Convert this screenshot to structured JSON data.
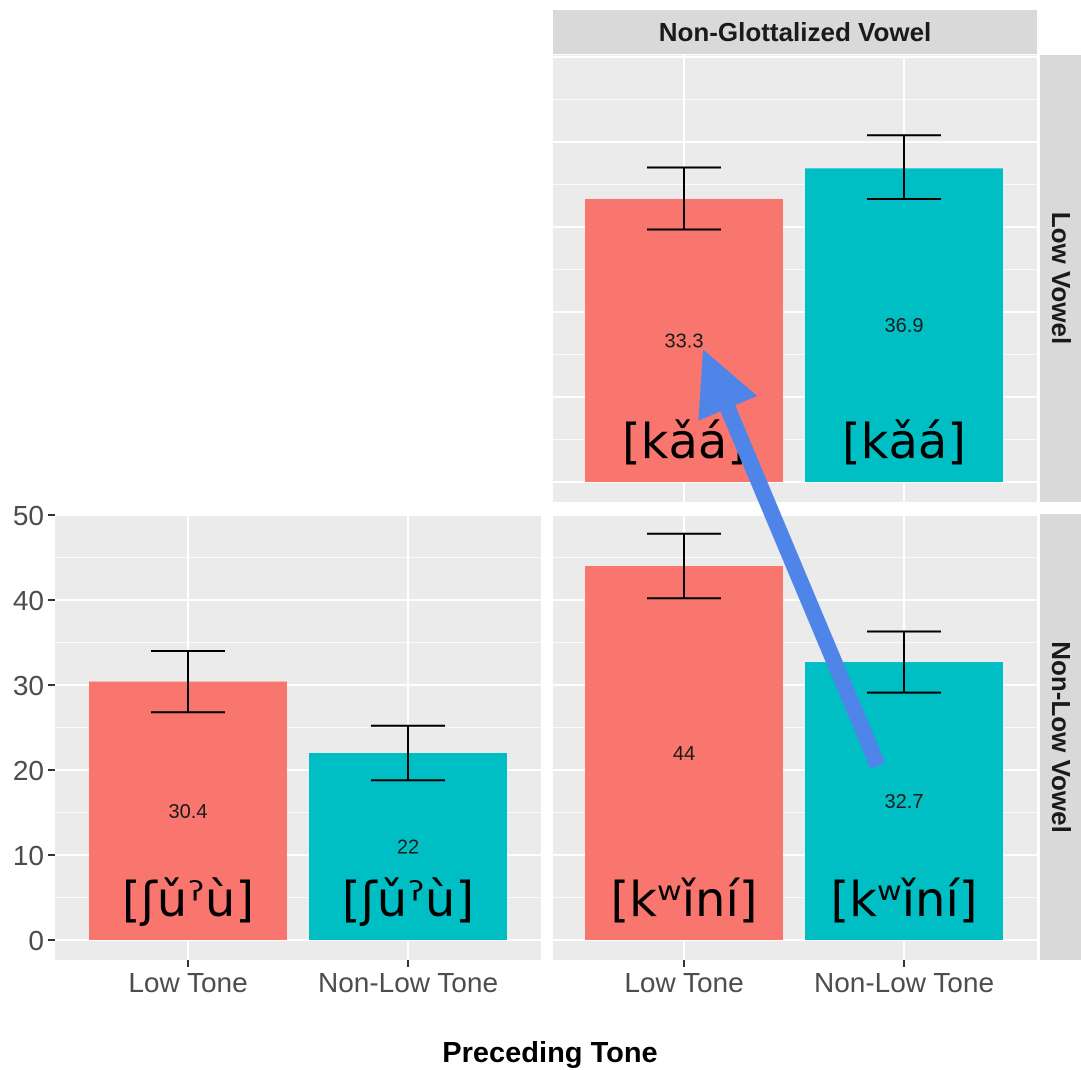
{
  "chart_data": {
    "type": "bar",
    "xlabel": "Preceding Tone",
    "ylabel": "",
    "ylim": [
      0,
      50
    ],
    "yticks": [
      0,
      10,
      20,
      30,
      40,
      50
    ],
    "categories": [
      "Low Tone",
      "Non-Low Tone"
    ],
    "colors": {
      "Low Tone": "#f8766d",
      "Non-Low Tone": "#00bfc4",
      "arrow": "#4f84e8"
    },
    "column_strips": [
      "",
      "Non-Glottalized Vowel"
    ],
    "row_strips": [
      "Low Vowel",
      "Non-Low Vowel"
    ],
    "panels": [
      {
        "name": "non-glottalized-low-vowel",
        "bars": [
          {
            "category": "Low Tone",
            "value": 33.3,
            "label": "33.3",
            "err_low": 29.7,
            "err_high": 37.0,
            "word": "[kǎá]"
          },
          {
            "category": "Non-Low Tone",
            "value": 36.9,
            "label": "36.9",
            "err_low": 33.3,
            "err_high": 40.8,
            "word": "[kǎá]"
          }
        ]
      },
      {
        "name": "glottalized-non-low-vowel",
        "bars": [
          {
            "category": "Low Tone",
            "value": 30.4,
            "label": "30.4",
            "err_low": 26.8,
            "err_high": 34.0,
            "word": "[ʃǔˀù]"
          },
          {
            "category": "Non-Low Tone",
            "value": 22,
            "label": "22",
            "err_low": 18.8,
            "err_high": 25.2,
            "word": "[ʃǔˀù]"
          }
        ]
      },
      {
        "name": "non-glottalized-non-low-vowel",
        "bars": [
          {
            "category": "Low Tone",
            "value": 44,
            "label": "44",
            "err_low": 40.2,
            "err_high": 47.8,
            "word": "[kʷǐní]"
          },
          {
            "category": "Non-Low Tone",
            "value": 32.7,
            "label": "32.7",
            "err_low": 29.1,
            "err_high": 36.3,
            "word": "[kʷǐní]"
          }
        ]
      }
    ],
    "annotations": [
      {
        "type": "arrow",
        "from": "non-glottalized-non-low-vowel Non-Low Tone bar",
        "to": "non-glottalized-low-vowel Low Tone bar"
      }
    ]
  }
}
